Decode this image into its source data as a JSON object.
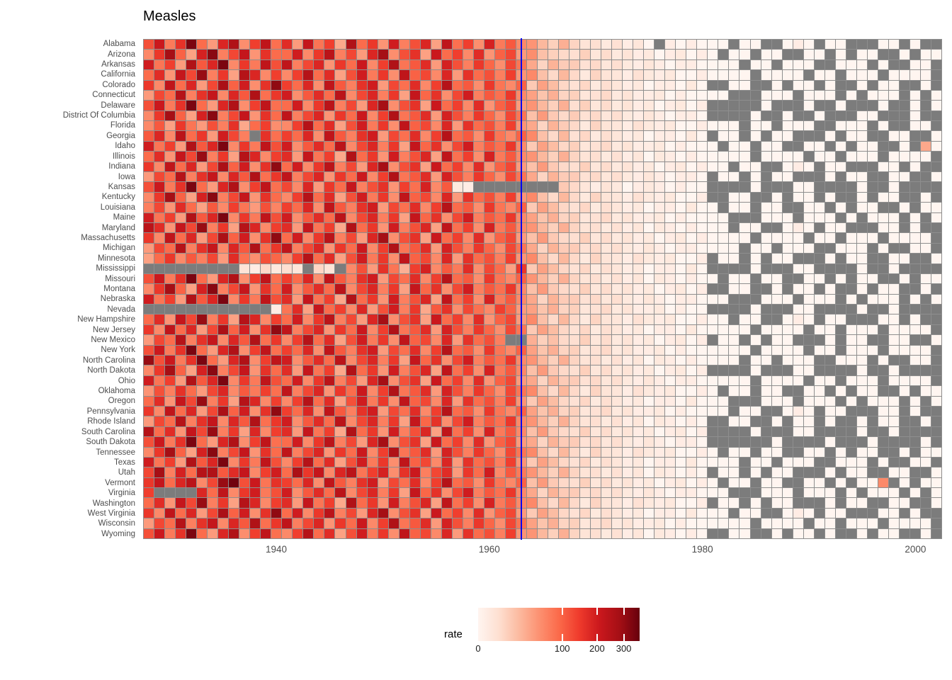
{
  "title": "Measles",
  "chart_data": {
    "type": "heatmap",
    "title": "Measles",
    "x_label_ticks": [
      "1940",
      "1960",
      "1980",
      "2000"
    ],
    "x_tick_years": [
      1940,
      1960,
      1980,
      2000
    ],
    "years_start": 1928,
    "years_end": 2002,
    "vline_year": 1963,
    "vline_color": "#0000EE",
    "na_token": ".",
    "na_color": "#7C7C7C",
    "grid_line_color": "#8E8E8E",
    "axis_text_color": "#4D4D4D",
    "color_scale": {
      "type": "sqrt",
      "max": 369,
      "palette": [
        "#FFF5F0",
        "#FEE0D2",
        "#FCBBA1",
        "#FC9272",
        "#FB6A4A",
        "#EF3B2C",
        "#CB181D",
        "#A50F15",
        "#67000D"
      ]
    },
    "legend": {
      "title": "rate",
      "ticks": [
        "0",
        "100",
        "200",
        "300"
      ],
      "tick_values": [
        0,
        100,
        200,
        300
      ]
    },
    "series": [
      {
        "state": "Alabama",
        "values": "120 210 75 160 340 90 45 180 260 55 140 230 85 170 45 220 80 140 35 260 90 150 50 200 70 120 180 40 230 85 140 55 190 75 110 60 50 25 12 30 10 4 6 2 5 1 3 0 . 1 0 1 0 0 0 . 0 0 . . 0 1 0 . 0 0 . . . 0 0 . 0 . ."
      },
      {
        "state": "Arizona",
        "values": "60 150 280 100 40 190 320 70 130 220 50 160 90 90 200 60 150 240 70 130 45 180 280 55 120 160 40 210 90 140 60 170 50 100 130 45 55 20 12 8 6 12 3 7 2 4 1 2 0 1 2 0 1 0 . 0 0 . 0 0 . . 0 0 . 0 . 0 0 . . 0 . 0 0"
      },
      {
        "state": "Arkansas",
        "values": "200 80 140 45 260 110 180 340 60 150 75 230 120 230 70 130 180 50 150 90 210 60 140 260 80 110 170 45 190 120 70 150 95 55 130 80 35 10 28 14 14 5 8 3 6 2 1 3 1 0 1 1 0 0 0 0 . 0 0 . 0 0 0 . . 0 0 0 . 0 . . 0 0 ."
      },
      {
        "state": "California",
        "values": "90 170 50 220 130 300 70 150 40 250 180 60 140 60 140 250 90 170 40 120 200 75 150 55 230 100 130 60 180 45 160 90 120 70 140 50 60 20 8 25 8 2 10 4 3 1 5 2 1 2 0 0 1 0 0 0 0 . 0 0 0 0 . 0 0 . 0 0 0 . 0 0 0 0 ."
      },
      {
        "state": "Colorado",
        "values": "150 60 230 90 180 45 130 270 100 200 55 160 310 140 90 180 55 230 110 70 160 200 45 130 85 170 60 140 250 90 110 55 150 80 60 100 15 40 22 9 5 9 2 6 3 1 2 0 1 1 0 2 0 . . 0 0 . . 0 . 0 0 . 0 . . 0 . 0 0 . . 0 ."
      },
      {
        "state": "Connecticut",
        "values": "45 130 90 250 70 160 220 60 180 110 260 85 150 200 55 110 170 90 240 60 130 180 70 150 40 220 95 160 55 130 200 70 110 85 150 60 40 18 30 10 12 3 5 8 2 4 1 1 2 0 1 0 0 0 0 . . . 0 0 0 . 0 0 0 . 0 . 0 0 0 . 0 . 0"
      },
      {
        "state": "Delaware",
        "values": "120 210 75 160 340 90 45 180 260 55 140 230 85 90 200 60 150 240 70 130 45 180 280 55 120 160 40 210 90 140 60 170 50 100 130 45 50 25 12 30 6 12 3 7 2 4 1 2 0 1 2 0 1 . . . . . 0 . . . 0 . . 0 . . . 0 . . 0 . 0"
      },
      {
        "state": "District Of Columbia",
        "values": "60 150 280 100 40 190 320 70 130 220 50 160 90 230 70 130 180 50 150 90 210 60 140 260 80 110 170 45 190 120 70 150 95 55 130 80 20 45 15 8 14 5 8 3 6 2 1 3 1 0 1 1 0 . . . . 0 . . 0 . . 0 . . . 0 0 . . . 0 . ."
      },
      {
        "state": "Florida",
        "values": "60 110 40 150 80 45 120 70 160 35 90 140 55 60 140 250 90 170 40 120 200 75 150 55 230 100 130 60 180 45 160 90 120 70 140 50 35 10 28 14 8 2 10 4 3 1 5 2 1 2 0 0 1 0 0 0 . 0 0 . 0 0 0 . . 0 0 0 . 0 . . 0 0 ."
      },
      {
        "state": "Georgia",
        "values": "110 180 60 240 90 150 45 200 130 70 . 160 85 140 90 180 55 230 110 70 160 200 45 130 85 170 60 140 250 90 110 55 150 80 60 100 60 20 8 25 5 9 2 6 3 1 2 0 1 1 0 2 0 . 0 0 . 0 . 0 0 . . . 0 . 0 0 . . 0 0 . . 0"
      },
      {
        "state": "Idaho",
        "values": "200 80 140 45 260 110 180 340 60 150 75 230 120 200 55 110 170 90 240 60 130 180 70 150 40 220 95 160 55 130 200 70 110 85 150 60 15 40 22 9 12 3 5 8 2 4 1 1 2 0 1 0 0 0 . 0 0 . 0 0 . . 0 0 . 0 . 0 0 . . 0 . 35 0"
      },
      {
        "state": "Illinois",
        "values": "90 170 50 220 130 300 70 150 40 250 180 60 140 170 45 220 80 140 35 260 90 150 50 200 70 120 180 40 230 85 140 55 190 75 110 60 50 25 12 30 10 4 6 2 5 1 3 0 2 1 0 1 0 0 0 0 0 . 0 0 0 0 . 0 0 . 0 0 0 . 0 0 0 0 ."
      },
      {
        "state": "Indiana",
        "values": "150 60 230 90 180 45 130 270 100 200 55 160 310 90 200 60 150 240 70 130 45 180 280 55 120 160 40 210 90 140 60 170 50 100 130 45 20 45 15 8 6 12 3 7 2 4 1 2 0 1 2 0 1 0 0 . 0 0 . . 0 1 0 . 0 0 . . . 0 0 . 0 . ."
      },
      {
        "state": "Iowa",
        "values": "45 130 90 250 70 160 220 60 180 110 260 85 150 230 70 130 180 50 150 90 210 60 140 260 80 110 170 45 190 120 70 150 95 55 130 80 35 10 28 14 14 5 8 3 6 2 1 3 1 0 1 1 0 . 0 0 . 0 . 0 0 . . . 0 . 0 0 . . 0 0 . . 0"
      },
      {
        "state": "Kansas",
        "values": "120 210 75 160 340 90 45 180 260 55 140 230 85 130 60 180 45 150 90 220 70 120 160 50 140 85 190 60 110 2 1 . . . . . . . . 15 8 3 1 4 2 0 1 2 1 0 1 0 0 . . . . 0 . . . 0 0 . . . . 0 . . 0 . . . ."
      },
      {
        "state": "Kentucky",
        "values": "60 150 280 100 40 190 320 70 130 220 50 160 90 60 140 250 90 170 40 120 200 75 150 55 230 100 130 60 180 45 160 90 120 70 140 50 60 20 8 25 8 2 10 4 3 1 5 2 1 2 0 0 1 . . 0 0 . . 0 . 0 0 . 0 . . 0 . 0 0 . . 0 ."
      },
      {
        "state": "Louisiana",
        "values": "70 130 50 170 90 40 110 60 140 80 45 120 65 140 90 180 55 230 110 70 160 200 45 130 85 170 60 140 250 90 110 55 150 80 60 100 15 40 22 9 5 9 2 6 3 1 2 0 1 1 0 2 0 0 . 0 0 . 0 0 . . 0 0 . 0 . 0 0 . . 0 . 0 0"
      },
      {
        "state": "Maine",
        "values": "200 80 140 45 260 110 180 340 60 150 75 230 120 200 55 110 170 90 240 60 130 180 70 150 40 220 95 160 55 130 200 70 110 85 150 60 40 18 30 10 12 3 5 8 2 4 1 1 2 0 1 0 0 0 0 . . . 0 0 0 . 0 0 0 . 0 . 0 0 0 . 0 . 0"
      },
      {
        "state": "Maryland",
        "values": "240 170 50 220 130 300 70 150 40 250 180 60 140 170 45 220 80 140 35 260 90 150 50 200 70 120 180 40 230 85 140 55 190 75 110 60 50 25 12 30 10 4 6 2 5 1 3 0 2 1 0 1 0 0 0 . 0 0 . . 0 1 0 . 0 0 . . . 0 0 . 0 . ."
      },
      {
        "state": "Massachusetts",
        "values": "150 60 230 90 180 45 130 270 100 200 55 160 310 90 200 60 150 240 70 130 45 180 280 55 120 160 40 210 90 140 60 170 50 100 130 45 20 45 15 8 6 12 3 7 2 4 1 2 0 1 2 0 1 0 0 0 0 . 0 0 0 0 . 0 0 . 0 0 0 . 0 0 0 0 ."
      },
      {
        "state": "Michigan",
        "values": "45 130 90 250 70 160 220 60 180 110 260 85 150 230 70 130 180 50 150 90 210 60 140 260 80 110 170 45 190 120 70 150 95 55 130 80 35 10 28 14 14 5 8 3 6 2 1 3 1 0 1 1 0 0 0 0 . 0 0 . 0 0 0 . . 0 0 0 . 0 . . 0 0 ."
      },
      {
        "state": "Minnesota",
        "values": "40 90 150 60 110 70 130 45 170 85 55 120 95 60 140 250 90 170 40 120 200 75 150 55 230 100 130 60 180 45 160 90 120 70 140 50 60 20 8 25 8 2 10 4 3 1 5 2 1 2 0 0 1 . 0 0 . 0 . 0 0 . . . 0 . 0 0 . . 0 0 . . 0"
      },
      {
        "state": "Mississippi",
        "values": ". . . . . . . . . 4 1 8 2 6 3 . 9 4 . 60 120 45 160 80 30 140 190 60 110 75 170 55 130 90 40 150 15 40 22 9 5 9 2 6 3 1 2 0 1 1 0 2 0 . . . . 0 . . . 0 0 . . . . 0 . . 0 . . . ."
      },
      {
        "state": "Missouri",
        "values": "120 210 75 160 340 90 45 180 260 55 140 230 85 140 90 180 55 230 110 70 160 200 45 130 85 170 60 140 250 90 110 55 150 80 60 100 50 25 12 30 10 4 6 2 5 1 3 0 2 1 0 1 0 0 . 0 0 . 0 0 . . 0 0 . 0 . 0 0 . . 0 . 0 0"
      },
      {
        "state": "Montana",
        "values": "60 150 280 100 40 190 320 70 130 220 50 160 90 200 55 110 170 90 240 60 130 180 70 150 40 220 95 160 55 130 200 70 110 85 150 60 20 45 15 8 6 12 3 7 2 4 1 2 0 1 2 0 1 . . 0 0 . . 0 . 0 0 . 0 . . 0 . 0 0 . . 0 ."
      },
      {
        "state": "Nebraska",
        "values": "200 80 140 45 260 110 180 340 60 150 75 230 120 170 45 220 80 140 35 260 90 150 50 200 70 120 180 40 230 85 140 55 190 75 110 60 35 10 28 14 14 5 8 3 6 2 1 3 1 0 1 1 0 0 0 . . . 0 0 0 . 0 0 0 . 0 . 0 0 0 . 0 . 0"
      },
      {
        "state": "Nevada",
        "values": ". . . . . . . . . . . . 1 80 170 40 220 90 140 60 180 45 120 200 70 150 35 110 160 55 130 85 60 140 100 45 40 18 30 10 12 3 5 8 2 4 1 1 2 0 1 0 0 . . . . 0 . . . 0 0 . . . . 0 . . 0 . . . ."
      },
      {
        "state": "New Hampshire",
        "values": "90 170 50 220 130 300 70 150 40 250 180 60 140 90 200 60 150 240 70 130 45 180 280 55 120 160 40 210 90 140 60 170 50 100 130 45 60 20 8 25 8 2 10 4 3 1 5 2 1 2 0 0 1 0 0 . 0 0 . . 0 1 0 . 0 0 . . . 0 0 . 0 . ."
      },
      {
        "state": "New Jersey",
        "values": "150 60 230 90 180 45 130 270 100 200 55 160 310 230 70 130 180 50 150 90 210 60 140 260 80 110 170 45 190 120 70 150 95 55 130 80 15 40 22 9 5 9 2 6 3 1 2 0 1 1 0 2 0 0 0 0 0 . 0 0 0 0 . 0 0 . 0 0 0 . 0 0 0 0 ."
      },
      {
        "state": "New Mexico",
        "values": "45 130 90 250 70 160 220 60 180 110 260 85 150 60 140 250 90 170 40 120 200 75 150 55 230 100 130 60 180 45 160 90 120 70 . . 30 12 20 8 6 12 3 7 2 4 1 2 0 1 2 0 1 . 0 0 . 0 . 0 0 . . . 0 . 0 0 . . 0 0 . . 0"
      },
      {
        "state": "New York",
        "values": "120 210 75 160 340 90 45 180 260 55 140 230 85 140 90 180 55 230 110 70 160 200 45 130 85 170 60 140 250 90 110 55 150 80 60 100 40 18 30 10 12 3 5 8 2 4 1 1 2 0 1 0 0 0 0 0 0 . 0 0 0 0 . 0 0 . 0 0 0 . 0 0 0 0 ."
      },
      {
        "state": "North Carolina",
        "values": "300 120 210 75 160 340 90 45 180 260 55 140 230 200 55 110 170 90 240 60 130 180 70 150 40 220 95 160 55 130 200 70 110 85 150 60 50 25 12 30 10 4 6 2 5 1 3 0 2 1 0 1 0 0 0 0 . 0 0 . 0 0 0 . . 0 0 0 . 0 . . 0 0 ."
      },
      {
        "state": "North Dakota",
        "values": "60 150 280 100 40 190 320 70 130 220 50 160 90 170 45 220 80 140 35 260 90 150 50 200 70 120 180 40 230 85 140 55 190 75 110 60 20 45 15 8 6 12 3 7 2 4 1 2 0 1 2 0 1 . . . . 0 . . . 0 0 . . . . 0 . . 0 . . . ."
      },
      {
        "state": "Ohio",
        "values": "200 80 140 45 260 110 180 340 60 150 75 230 120 90 200 60 150 240 70 130 45 180 280 55 120 160 40 210 90 140 60 170 50 100 130 45 35 10 28 14 14 5 8 3 6 2 1 3 1 0 1 1 0 0 0 0 0 . 0 0 0 0 . 0 0 . 0 0 0 . 0 0 0 0 ."
      },
      {
        "state": "Oklahoma",
        "values": "50 120 70 160 90 45 130 180 60 110 75 140 85 230 70 130 180 50 150 90 210 60 140 260 80 110 170 45 190 120 70 150 95 55 130 80 60 20 8 25 8 2 10 4 3 1 5 2 1 2 0 0 1 0 . 0 0 . 0 0 . . 0 0 . 0 . 0 0 . . 0 . 0 0"
      },
      {
        "state": "Oregon",
        "values": "90 170 50 220 130 300 70 150 40 250 180 60 140 60 140 250 90 170 40 120 200 75 150 55 230 100 130 60 180 45 160 90 120 70 140 50 15 40 22 9 5 9 2 6 3 1 2 0 1 1 0 2 0 0 0 . . . 0 0 0 . 0 0 0 . 0 . 0 0 0 . 0 . 0"
      },
      {
        "state": "Pennsylvania",
        "values": "150 60 230 90 180 45 130 270 100 200 55 160 310 140 90 180 55 230 110 70 160 200 45 130 85 170 60 140 250 90 110 55 150 80 60 100 40 18 30 10 12 3 5 8 2 4 1 1 2 0 1 0 0 0 0 . 0 0 . . 0 1 0 . 0 0 . . . 0 0 . 0 . ."
      },
      {
        "state": "Rhode Island",
        "values": "45 130 90 250 70 160 220 60 180 110 260 85 150 200 55 110 170 90 240 60 130 180 70 150 40 220 95 160 55 130 200 70 110 85 150 60 50 25 12 30 10 4 6 2 5 1 3 0 2 1 0 1 0 . . 0 0 . . 0 . 0 0 . 0 . . 0 . 0 0 . . 0 ."
      },
      {
        "state": "South Carolina",
        "values": "250 90 170 50 220 130 300 70 150 40 180 60 140 170 45 220 80 140 35 260 90 150 50 200 70 120 180 40 230 85 140 55 190 75 110 60 20 45 15 8 6 12 3 7 2 4 1 2 0 1 2 0 1 . . . . 0 . . . 0 0 . . . . 0 . . 0 . . . ."
      },
      {
        "state": "South Dakota",
        "values": "120 210 75 160 340 90 45 180 260 55 140 230 85 90 200 60 150 240 70 130 45 180 280 55 120 160 40 210 90 140 60 170 50 100 130 45 35 10 28 14 14 5 8 3 6 2 1 3 1 0 1 1 0 . . . . . . 0 . . . . 0 . . . 0 . . . . 0 ."
      },
      {
        "state": "Tennessee",
        "values": "60 150 280 100 40 190 320 70 130 220 50 160 90 230 70 130 180 50 150 90 210 60 140 260 80 110 170 45 190 120 70 150 95 55 130 80 60 20 8 25 8 2 10 4 3 1 5 2 1 2 0 0 1 0 . 0 0 . 0 0 . . 0 0 . 0 . 0 0 . . 0 . 0 0"
      },
      {
        "state": "Texas",
        "values": "200 80 140 45 260 110 180 340 60 150 75 230 120 60 140 250 90 170 40 120 200 75 150 55 230 100 130 60 180 45 160 90 120 70 140 50 15 40 22 9 5 9 2 6 3 1 2 0 1 1 0 2 0 0 0 0 . 0 0 . 0 0 0 . . 0 0 0 . 0 . . 0 0 ."
      },
      {
        "state": "Utah",
        "values": "130 280 70 190 90 250 260 110 170 220 60 140 200 90 270 150 220 60 180 240 80 140 190 55 160 210 70 130 170 45 150 90 200 60 110 75 50 25 12 30 10 4 6 2 5 1 3 0 2 1 0 1 0 . 0 0 . 0 . 0 0 . . . 0 . 0 0 . . 0 0 . . 0"
      },
      {
        "state": "Vermont",
        "values": "150 220 90 180 240 60 130 300 356 120 210 80 160 140 90 180 55 230 110 70 160 200 45 130 85 170 60 140 250 90 110 55 150 80 60 100 20 45 15 8 6 12 3 7 2 4 1 2 0 1 2 0 1 0 . 0 0 . 0 0 . . 0 0 . 0 . 0 0 60 . 0 . 0 0"
      },
      {
        "state": "Virginia",
        "values": "140 . . . . 180 90 230 60 150 200 75 120 200 55 110 170 90 240 60 130 180 70 150 40 220 95 160 55 130 200 70 110 85 150 60 35 10 28 14 14 5 8 3 6 2 1 3 1 0 1 1 0 0 0 . . . 0 0 0 . 0 0 0 . 0 . 0 0 0 . 0 . 0"
      },
      {
        "state": "Washington",
        "values": "90 170 50 220 130 300 70 150 40 250 180 60 140 170 45 220 80 140 35 260 90 150 50 200 70 120 180 40 230 85 140 55 190 75 110 60 60 20 8 25 8 2 10 4 3 1 5 2 1 2 0 0 1 . 0 0 . 0 . 0 0 . . . 0 . 0 0 . . 0 0 . . 0"
      },
      {
        "state": "West Virginia",
        "values": "150 60 230 90 180 45 130 270 100 200 55 160 310 90 200 60 150 240 70 130 45 180 280 55 120 160 40 210 90 140 60 170 50 100 130 45 15 40 22 9 5 9 2 6 3 1 2 0 1 1 0 2 0 0 0 . 0 0 . . 0 1 0 . 0 0 . . . 0 0 . 0 . ."
      },
      {
        "state": "Wisconsin",
        "values": "45 130 90 250 70 160 220 60 180 110 260 85 150 230 70 130 180 50 150 90 210 60 140 260 80 110 170 45 190 120 70 150 95 55 130 80 40 18 30 10 12 3 5 8 2 4 1 1 2 0 1 0 0 0 0 0 0 . 0 0 0 0 . 0 0 . 0 0 0 . 0 0 0 0 ."
      },
      {
        "state": "Wyoming",
        "values": "120 210 75 160 340 90 45 180 260 55 140 230 85 60 140 250 90 170 40 120 200 75 150 55 230 100 130 60 180 45 160 90 120 70 140 50 50 25 12 30 10 4 6 2 5 1 3 0 2 1 0 1 0 . . 0 0 . . 0 . 0 0 . 0 . . 0 . 0 0 . . 0 ."
      }
    ]
  }
}
